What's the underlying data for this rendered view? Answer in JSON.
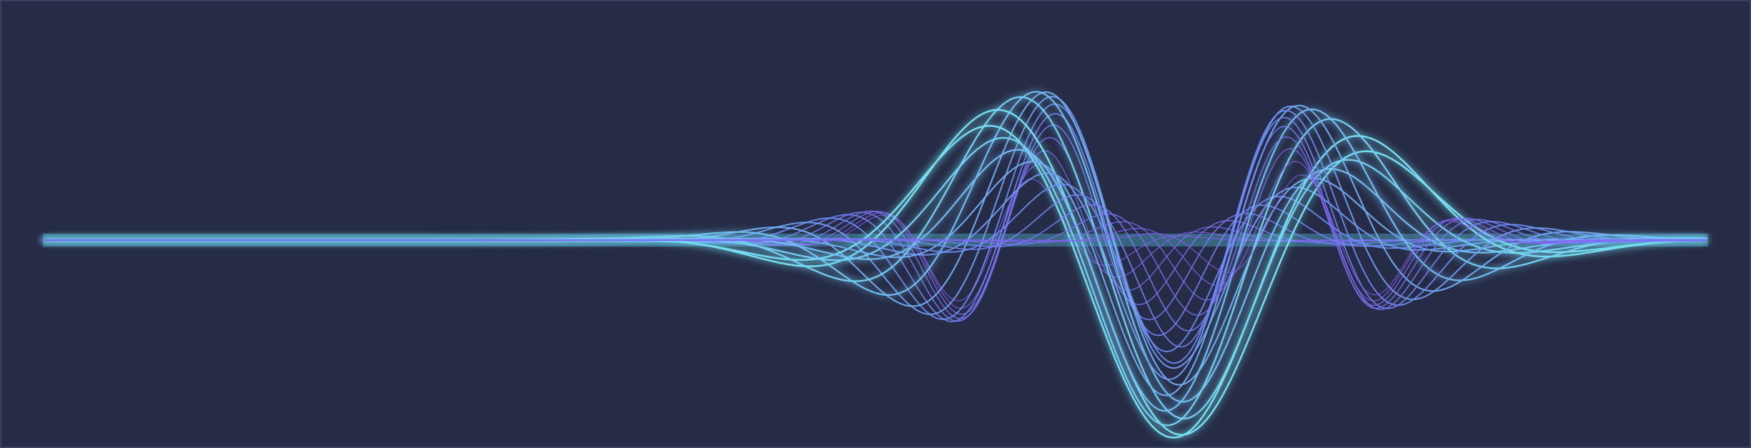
{
  "app": {
    "title": ""
  },
  "wave": {
    "line_count": 24,
    "colors": {
      "background": "#262c46",
      "frame": "#3a4160",
      "violet": "#8b5cf6",
      "blue": "#6f8cf7",
      "cyan": "#76e6ee",
      "glow": "#5ad1e8"
    }
  }
}
